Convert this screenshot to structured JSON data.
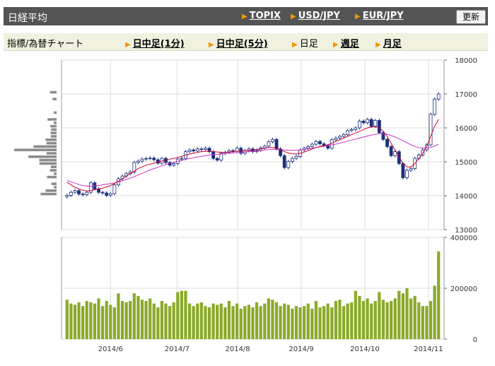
{
  "header": {
    "title": "日経平均",
    "links": [
      "TOPIX",
      "USD/JPY",
      "EUR/JPY"
    ],
    "refresh_label": "更新"
  },
  "subnav": {
    "label": "指標/為替チャート",
    "items": [
      {
        "label": "日中足(1分)",
        "active": false
      },
      {
        "label": "日中足(5分)",
        "active": false
      },
      {
        "label": "日足",
        "active": true
      },
      {
        "label": "週足",
        "active": false
      },
      {
        "label": "月足",
        "active": false
      }
    ]
  },
  "colors": {
    "candle_up": "#ffffff",
    "candle_down": "#1b2f7c",
    "ma_short": "#cc0033",
    "ma_long": "#cc33cc",
    "volume": "#8aaa2a",
    "profile": "#8c8c8c"
  },
  "chart_data": {
    "type": "candlestick",
    "price_axis": {
      "min": 13000,
      "max": 18000,
      "ticks": [
        18000,
        17000,
        16000,
        15000,
        14000,
        13000
      ]
    },
    "volume_axis": {
      "min": 0,
      "max": 400000,
      "ticks": [
        400000,
        200000,
        0
      ]
    },
    "x_tick_labels": [
      "2014/6",
      "2014/7",
      "2014/8",
      "2014/9",
      "2014/10",
      "2014/11"
    ],
    "closes": [
      14010,
      14100,
      14150,
      14050,
      14030,
      14100,
      14380,
      14200,
      14100,
      14080,
      14010,
      14060,
      14320,
      14500,
      14580,
      14650,
      14700,
      14980,
      15020,
      15080,
      15100,
      15110,
      15060,
      14960,
      15100,
      14980,
      14900,
      14950,
      15080,
      15100,
      15300,
      15350,
      15320,
      15380,
      15360,
      15400,
      15300,
      15100,
      15050,
      15250,
      15280,
      15330,
      15310,
      15400,
      15250,
      15330,
      15380,
      15300,
      15340,
      15410,
      15460,
      15590,
      15660,
      15380,
      15180,
      14830,
      15010,
      15100,
      15160,
      15350,
      15400,
      15450,
      15520,
      15600,
      15530,
      15480,
      15400,
      15650,
      15700,
      15750,
      15800,
      15920,
      15950,
      16000,
      16200,
      16150,
      16250,
      16050,
      16220,
      15860,
      15660,
      15450,
      15180,
      15300,
      14950,
      14530,
      14750,
      14800,
      15100,
      15200,
      15350,
      15500,
      16400,
      16850,
      17000
    ],
    "ma_short": [
      14400,
      14320,
      14250,
      14200,
      14160,
      14140,
      14150,
      14180,
      14200,
      14220,
      14260,
      14300,
      14360,
      14430,
      14500,
      14580,
      14650,
      14720,
      14800,
      14850,
      14900,
      14930,
      14960,
      14990,
      15020,
      15050,
      15080,
      15100,
      15130,
      15160,
      15200,
      15230,
      15250,
      15280,
      15300,
      15310,
      15310,
      15300,
      15290,
      15280,
      15280,
      15290,
      15300,
      15310,
      15320,
      15330,
      15340,
      15350,
      15360,
      15380,
      15400,
      15420,
      15420,
      15400,
      15360,
      15300,
      15260,
      15240,
      15230,
      15250,
      15290,
      15330,
      15380,
      15420,
      15450,
      15480,
      15500,
      15550,
      15600,
      15650,
      15700,
      15750,
      15800,
      15850,
      15900,
      15950,
      16000,
      16030,
      16040,
      16000,
      15900,
      15750,
      15550,
      15350,
      15150,
      14950,
      14850,
      14850,
      14950,
      15100,
      15250,
      15450,
      15750,
      16050,
      16250
    ],
    "ma_long": [
      14450,
      14410,
      14370,
      14330,
      14300,
      14290,
      14280,
      14290,
      14300,
      14320,
      14340,
      14360,
      14380,
      14410,
      14440,
      14480,
      14520,
      14560,
      14610,
      14660,
      14710,
      14760,
      14800,
      14840,
      14880,
      14920,
      14950,
      14980,
      15010,
      15040,
      15070,
      15100,
      15120,
      15140,
      15160,
      15180,
      15200,
      15210,
      15220,
      15230,
      15240,
      15250,
      15260,
      15270,
      15280,
      15290,
      15300,
      15310,
      15320,
      15330,
      15350,
      15360,
      15370,
      15370,
      15360,
      15350,
      15340,
      15340,
      15340,
      15350,
      15360,
      15380,
      15400,
      15420,
      15440,
      15460,
      15480,
      15500,
      15520,
      15550,
      15580,
      15610,
      15640,
      15670,
      15700,
      15730,
      15760,
      15790,
      15810,
      15830,
      15830,
      15810,
      15780,
      15730,
      15680,
      15620,
      15560,
      15500,
      15450,
      15420,
      15400,
      15400,
      15420,
      15460,
      15520
    ],
    "volume": [
      155000,
      140000,
      135000,
      145000,
      130000,
      150000,
      145000,
      140000,
      160000,
      130000,
      150000,
      135000,
      125000,
      180000,
      150000,
      145000,
      150000,
      180000,
      170000,
      155000,
      150000,
      160000,
      140000,
      125000,
      150000,
      140000,
      130000,
      145000,
      185000,
      190000,
      190000,
      140000,
      130000,
      140000,
      145000,
      130000,
      125000,
      140000,
      135000,
      140000,
      125000,
      150000,
      130000,
      140000,
      120000,
      130000,
      135000,
      125000,
      145000,
      130000,
      140000,
      160000,
      155000,
      145000,
      130000,
      140000,
      135000,
      120000,
      130000,
      125000,
      130000,
      140000,
      120000,
      150000,
      125000,
      130000,
      140000,
      125000,
      150000,
      155000,
      130000,
      140000,
      145000,
      190000,
      170000,
      150000,
      160000,
      140000,
      150000,
      185000,
      155000,
      145000,
      150000,
      160000,
      190000,
      180000,
      200000,
      160000,
      170000,
      145000,
      130000,
      130000,
      150000,
      210000,
      345000
    ]
  }
}
